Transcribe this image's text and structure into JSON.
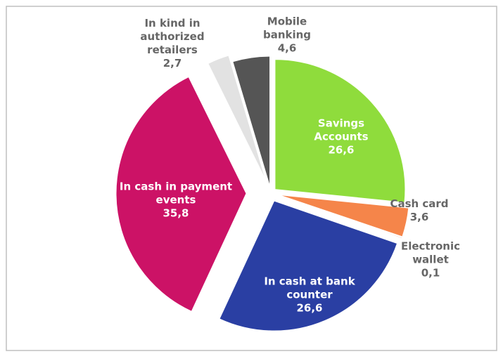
{
  "chart_data": {
    "type": "pie",
    "categories": [
      "Savings Accounts",
      "Cash card",
      "Electronic wallet",
      "In cash at bank counter",
      "In cash in payment events",
      "In kind in authorized retailers",
      "Mobile banking"
    ],
    "values": [
      26.6,
      3.6,
      0.1,
      26.6,
      35.8,
      2.7,
      4.6
    ],
    "value_labels": [
      "26,6",
      "3,6",
      "0,1",
      "26,6",
      "35,8",
      "2,7",
      "4,6"
    ],
    "colors": [
      "#8fdc3c",
      "#f5854a",
      "#c8503c",
      "#2a3fa3",
      "#cc1266",
      "#e2e2e2",
      "#555555"
    ]
  }
}
